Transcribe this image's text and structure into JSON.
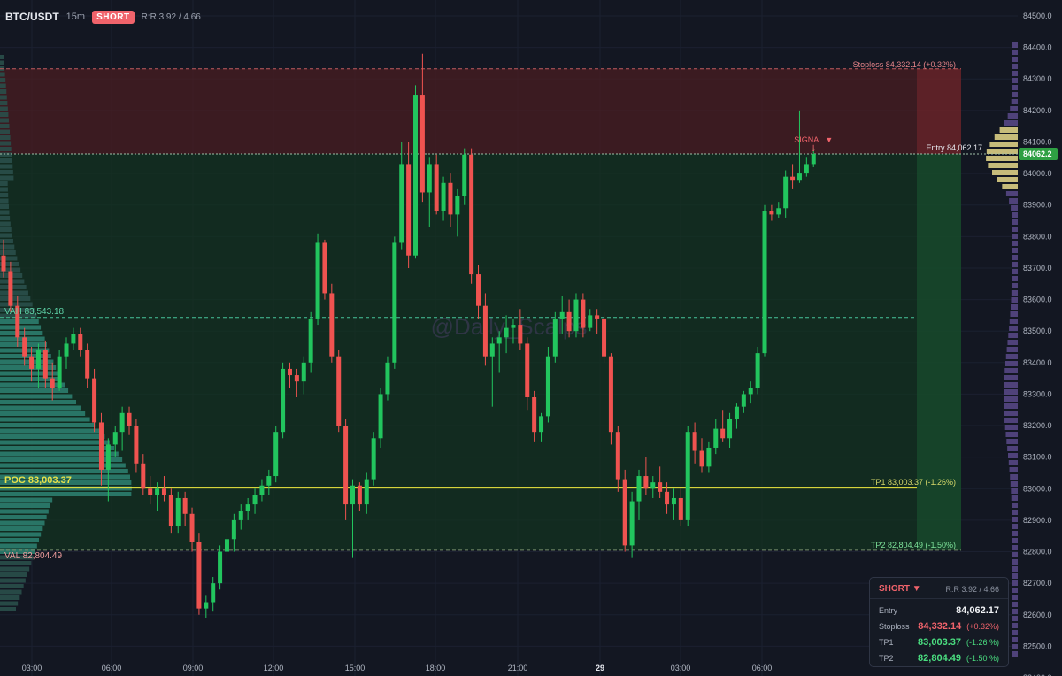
{
  "header": {
    "symbol": "BTC/USDT",
    "timeframe": "15m",
    "side_badge": "SHORT",
    "rr": "R:R 3.92 / 4.66"
  },
  "watermark": "@Daily_Scalps",
  "colors": {
    "up": "#22c55e",
    "down": "#ef5350",
    "poc": "#f2ec3f",
    "vah": "#46c49a",
    "val": "#ee8f8f",
    "stop_zone": "#4a1d22",
    "profit_zone": "#13351f",
    "background": "#131722"
  },
  "levels": {
    "stoploss": {
      "value": 84332.14,
      "label": "Stoploss 84,332.14 (+0.32%)"
    },
    "entry": {
      "value": 84062.17,
      "label": "Entry 84,062.17",
      "tag": "84062.2"
    },
    "tp1": {
      "value": 83003.37,
      "label": "TP1 83,003.37 (-1.26%)"
    },
    "tp2": {
      "value": 82804.49,
      "label": "TP2 82,804.49 (-1.50%)"
    },
    "poc": {
      "value": 83003.37,
      "label": "POC 83,003.37"
    },
    "vah": {
      "value": 83543.18,
      "label": "VAH 83,543.18"
    },
    "val": {
      "value": 82804.49,
      "label": "VAL 82,804.49"
    }
  },
  "signal_label": "SIGNAL ▼",
  "panel": {
    "side": "SHORT ▼",
    "rr": "R:R 3.92 / 4.66",
    "rows": [
      {
        "label": "Entry",
        "value": "84,062.17",
        "pct": ""
      },
      {
        "label": "Stoploss",
        "value": "84,332.14",
        "pct": "(+0.32%)"
      },
      {
        "label": "TP1",
        "value": "83,003.37",
        "pct": "(-1.26 %)"
      },
      {
        "label": "TP2",
        "value": "82,804.49",
        "pct": "(-1.50 %)"
      }
    ]
  },
  "chart_data": {
    "type": "candlestick",
    "interval": "15m",
    "ylim": [
      82370,
      84540
    ],
    "y_ticks": [
      82400,
      82500,
      82600,
      82700,
      82800,
      82900,
      83000,
      83100,
      83200,
      83300,
      83400,
      83500,
      83600,
      83700,
      83800,
      83900,
      84000,
      84100,
      84200,
      84300,
      84400,
      84500
    ],
    "y_tick_labels": [
      "82400.0",
      "82500.0",
      "82600.0",
      "82700.0",
      "82800.0",
      "82900.0",
      "83000.0",
      "83100.0",
      "83200.0",
      "83300.0",
      "83400.0",
      "83500.0",
      "83600.0",
      "83700.0",
      "83800.0",
      "83900.0",
      "84000.0",
      "84100.0",
      "84200.0",
      "84300.0",
      "84400.0",
      "84500.0"
    ],
    "x_tick_labels": [
      "03:00",
      "06:00",
      "09:00",
      "12:00",
      "15:00",
      "18:00",
      "21:00",
      "29",
      "03:00",
      "06:00"
    ],
    "candles": [
      [
        83740,
        83790,
        83670,
        83690
      ],
      [
        83690,
        83720,
        83560,
        83580
      ],
      [
        83580,
        83610,
        83450,
        83480
      ],
      [
        83480,
        83510,
        83390,
        83420
      ],
      [
        83420,
        83450,
        83340,
        83380
      ],
      [
        83380,
        83460,
        83320,
        83440
      ],
      [
        83440,
        83470,
        83320,
        83350
      ],
      [
        83350,
        83400,
        83280,
        83320
      ],
      [
        83320,
        83440,
        83310,
        83420
      ],
      [
        83420,
        83480,
        83380,
        83460
      ],
      [
        83460,
        83510,
        83440,
        83490
      ],
      [
        83490,
        83510,
        83420,
        83440
      ],
      [
        83440,
        83460,
        83320,
        83350
      ],
      [
        83350,
        83380,
        83180,
        83210
      ],
      [
        83210,
        83240,
        83010,
        83060
      ],
      [
        83060,
        83160,
        82960,
        83140
      ],
      [
        83140,
        83200,
        83100,
        83180
      ],
      [
        83180,
        83260,
        83120,
        83240
      ],
      [
        83240,
        83260,
        83170,
        83200
      ],
      [
        83200,
        83220,
        83050,
        83080
      ],
      [
        83080,
        83110,
        82980,
        83000
      ],
      [
        83000,
        83040,
        82950,
        82980
      ],
      [
        82980,
        83020,
        82930,
        83000
      ],
      [
        83000,
        83040,
        82960,
        82980
      ],
      [
        82980,
        83000,
        82860,
        82880
      ],
      [
        82880,
        82990,
        82860,
        82970
      ],
      [
        82970,
        82990,
        82880,
        82920
      ],
      [
        82920,
        82940,
        82800,
        82830
      ],
      [
        82830,
        82860,
        82600,
        82620
      ],
      [
        82620,
        82660,
        82590,
        82640
      ],
      [
        82640,
        82720,
        82610,
        82700
      ],
      [
        82700,
        82820,
        82680,
        82800
      ],
      [
        82800,
        82860,
        82760,
        82840
      ],
      [
        82840,
        82920,
        82800,
        82900
      ],
      [
        82900,
        82950,
        82870,
        82930
      ],
      [
        82930,
        82970,
        82900,
        82950
      ],
      [
        82950,
        83000,
        82920,
        82980
      ],
      [
        82980,
        83030,
        82960,
        83010
      ],
      [
        83010,
        83060,
        82980,
        83040
      ],
      [
        83040,
        83200,
        83020,
        83180
      ],
      [
        83180,
        83400,
        83160,
        83380
      ],
      [
        83380,
        83400,
        83320,
        83360
      ],
      [
        83360,
        83380,
        83290,
        83340
      ],
      [
        83340,
        83420,
        83300,
        83400
      ],
      [
        83400,
        83560,
        83370,
        83540
      ],
      [
        83540,
        83810,
        83520,
        83780
      ],
      [
        83780,
        83790,
        83600,
        83620
      ],
      [
        83620,
        83650,
        83400,
        83420
      ],
      [
        83420,
        83440,
        83180,
        83200
      ],
      [
        83200,
        83220,
        82900,
        82950
      ],
      [
        82950,
        83030,
        82780,
        83010
      ],
      [
        83010,
        83020,
        82930,
        82950
      ],
      [
        82950,
        83050,
        82920,
        83030
      ],
      [
        83030,
        83180,
        83010,
        83160
      ],
      [
        83160,
        83320,
        83130,
        83300
      ],
      [
        83300,
        83420,
        83280,
        83400
      ],
      [
        83400,
        83800,
        83380,
        83780
      ],
      [
        83780,
        84100,
        83760,
        84030
      ],
      [
        84030,
        84100,
        83700,
        83740
      ],
      [
        83740,
        84280,
        83730,
        84250
      ],
      [
        84250,
        84380,
        83910,
        83940
      ],
      [
        83940,
        84050,
        83830,
        84030
      ],
      [
        84030,
        84060,
        83870,
        83880
      ],
      [
        83880,
        83990,
        83850,
        83970
      ],
      [
        83970,
        84000,
        83830,
        83870
      ],
      [
        83870,
        83950,
        83800,
        83930
      ],
      [
        83930,
        84080,
        83900,
        84060
      ],
      [
        84060,
        84080,
        83650,
        83680
      ],
      [
        83680,
        83710,
        83540,
        83580
      ],
      [
        83580,
        83620,
        83390,
        83420
      ],
      [
        83420,
        83480,
        83260,
        83460
      ],
      [
        83460,
        83500,
        83370,
        83480
      ],
      [
        83480,
        83550,
        83430,
        83510
      ],
      [
        83510,
        83540,
        83460,
        83520
      ],
      [
        83520,
        83570,
        83440,
        83460
      ],
      [
        83460,
        83480,
        83250,
        83290
      ],
      [
        83290,
        83310,
        83150,
        83180
      ],
      [
        83180,
        83240,
        83150,
        83230
      ],
      [
        83230,
        83450,
        83210,
        83420
      ],
      [
        83420,
        83560,
        83400,
        83540
      ],
      [
        83540,
        83610,
        83490,
        83560
      ],
      [
        83560,
        83600,
        83480,
        83500
      ],
      [
        83500,
        83620,
        83480,
        83600
      ],
      [
        83600,
        83620,
        83480,
        83510
      ],
      [
        83510,
        83570,
        83500,
        83550
      ],
      [
        83550,
        83570,
        83490,
        83540
      ],
      [
        83540,
        83560,
        83400,
        83420
      ],
      [
        83420,
        83430,
        83140,
        83180
      ],
      [
        83180,
        83200,
        82990,
        83030
      ],
      [
        83030,
        83060,
        82800,
        82820
      ],
      [
        82820,
        82990,
        82780,
        82960
      ],
      [
        82960,
        83060,
        82900,
        83040
      ],
      [
        83040,
        83100,
        82980,
        83000
      ],
      [
        83000,
        83040,
        82970,
        83020
      ],
      [
        83020,
        83070,
        82970,
        82990
      ],
      [
        82990,
        83020,
        82920,
        82950
      ],
      [
        82950,
        83000,
        82900,
        82970
      ],
      [
        82970,
        83000,
        82880,
        82900
      ],
      [
        82900,
        83200,
        82880,
        83180
      ],
      [
        83180,
        83210,
        83080,
        83120
      ],
      [
        83120,
        83160,
        83050,
        83070
      ],
      [
        83070,
        83150,
        83050,
        83130
      ],
      [
        83130,
        83220,
        83110,
        83190
      ],
      [
        83190,
        83250,
        83150,
        83160
      ],
      [
        83160,
        83240,
        83130,
        83220
      ],
      [
        83220,
        83270,
        83190,
        83260
      ],
      [
        83260,
        83310,
        83240,
        83300
      ],
      [
        83300,
        83340,
        83270,
        83320
      ],
      [
        83320,
        83450,
        83300,
        83430
      ],
      [
        83430,
        83900,
        83420,
        83880
      ],
      [
        83880,
        83900,
        83850,
        83870
      ],
      [
        83870,
        83910,
        83860,
        83890
      ],
      [
        83890,
        84010,
        83860,
        83990
      ],
      [
        83990,
        84030,
        83950,
        83980
      ],
      [
        83980,
        84200,
        83970,
        84000
      ],
      [
        84000,
        84050,
        83990,
        84030
      ],
      [
        84030,
        84080,
        84020,
        84062
      ]
    ]
  }
}
